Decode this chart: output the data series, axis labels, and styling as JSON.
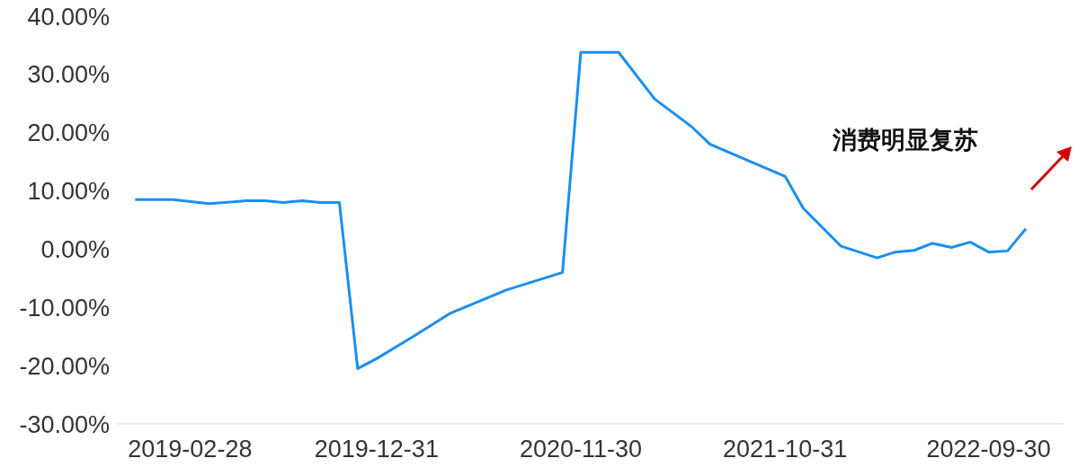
{
  "chart_data": {
    "type": "line",
    "annotations": [
      "消费明显复苏"
    ],
    "x": [
      "2018-11-30",
      "2019-01-31",
      "2019-03-31",
      "2019-05-31",
      "2019-06-30",
      "2019-07-31",
      "2019-08-31",
      "2019-09-30",
      "2019-10-31",
      "2019-11-30",
      "2019-12-31",
      "2020-02-29",
      "2020-04-30",
      "2020-07-31",
      "2020-10-31",
      "2020-11-30",
      "2021-01-31",
      "2021-03-31",
      "2021-05-31",
      "2021-06-30",
      "2021-10-31",
      "2021-11-30",
      "2022-01-31",
      "2022-03-31",
      "2022-04-30",
      "2022-05-31",
      "2022-06-30",
      "2022-07-31",
      "2022-08-31",
      "2022-09-30",
      "2022-10-31",
      "2022-11-30"
    ],
    "series": [
      {
        "color": "#1a8ff0",
        "values": [
          8.5,
          8.5,
          7.8,
          8.3,
          8.3,
          8.0,
          8.3,
          8.0,
          8.0,
          -20.5,
          -18.8,
          -15,
          -11,
          -7,
          -4,
          33.8,
          33.8,
          25.8,
          21,
          18,
          12.5,
          7,
          0.5,
          -1.5,
          -0.5,
          -0.2,
          1,
          0.3,
          1.2,
          -0.5,
          -0.3,
          3.5
        ]
      }
    ],
    "xlim": [
      "2018-10-31",
      "2023-01-31"
    ],
    "xticks": [
      "2019-02-28",
      "2019-12-31",
      "2020-11-30",
      "2021-10-31",
      "2022-09-30"
    ],
    "ylim": [
      -30,
      40
    ],
    "yticks": [
      {
        "value": -30,
        "label": "-30.00%"
      },
      {
        "value": -20,
        "label": "-20.00%"
      },
      {
        "value": -10,
        "label": "-10.00%"
      },
      {
        "value": 0,
        "label": "0.00%"
      },
      {
        "value": 10,
        "label": "10.00%"
      },
      {
        "value": 20,
        "label": "20.00%"
      },
      {
        "value": 30,
        "label": "30.00%"
      },
      {
        "value": 40,
        "label": "40.00%"
      }
    ],
    "grid": false,
    "legend": false,
    "marker": "none",
    "line_style": "solid"
  }
}
